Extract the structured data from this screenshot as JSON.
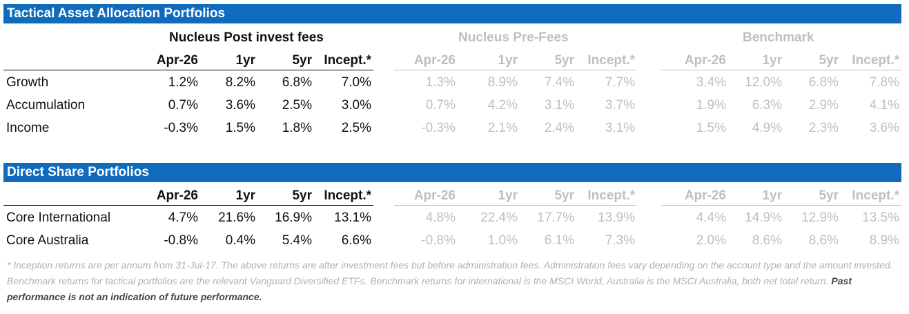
{
  "sections": [
    {
      "title": "Tactical Asset Allocation Portfolios",
      "group_headers": [
        "Nucleus Post invest fees",
        "Nucleus Pre-Fees",
        "Benchmark"
      ],
      "columns": [
        "Apr-26",
        "1yr",
        "5yr",
        "Incept.*"
      ],
      "rows": [
        {
          "name": "Growth",
          "post": [
            "1.2%",
            "8.2%",
            "6.8%",
            "7.0%"
          ],
          "pre": [
            "1.3%",
            "8.9%",
            "7.4%",
            "7.7%"
          ],
          "bench": [
            "3.4%",
            "12.0%",
            "6.8%",
            "7.8%"
          ]
        },
        {
          "name": "Accumulation",
          "post": [
            "0.7%",
            "3.6%",
            "2.5%",
            "3.0%"
          ],
          "pre": [
            "0.7%",
            "4.2%",
            "3.1%",
            "3.7%"
          ],
          "bench": [
            "1.9%",
            "6.3%",
            "2.9%",
            "4.1%"
          ]
        },
        {
          "name": "Income",
          "post": [
            "-0.3%",
            "1.5%",
            "1.8%",
            "2.5%"
          ],
          "pre": [
            "-0.3%",
            "2.1%",
            "2.4%",
            "3.1%"
          ],
          "bench": [
            "1.5%",
            "4.9%",
            "2.3%",
            "3.6%"
          ]
        }
      ]
    },
    {
      "title": "Direct Share Portfolios",
      "columns": [
        "Apr-26",
        "1yr",
        "5yr",
        "Incept.*"
      ],
      "rows": [
        {
          "name": "Core International",
          "post": [
            "4.7%",
            "21.6%",
            "16.9%",
            "13.1%"
          ],
          "pre": [
            "4.8%",
            "22.4%",
            "17.7%",
            "13.9%"
          ],
          "bench": [
            "4.4%",
            "14.9%",
            "12.9%",
            "13.5%"
          ]
        },
        {
          "name": "Core Australia",
          "post": [
            "-0.8%",
            "0.4%",
            "5.4%",
            "6.6%"
          ],
          "pre": [
            "-0.8%",
            "1.0%",
            "6.1%",
            "7.3%"
          ],
          "bench": [
            "2.0%",
            "8.6%",
            "8.6%",
            "8.9%"
          ]
        }
      ]
    }
  ],
  "footnote": {
    "text": "* Inception returns are per annum from 31-Jul-17. The above returns are after investment fees but before administration fees. Administration fees vary depending on the account type and the amount invested. Benchmark returns for tactical portfolios are the relevant Vanguard Diversified ETFs. Benchmark returns for international is the MSCI World, Australia is the MSCI Australia, both net total return.",
    "emphasis": "Past performance is not an indication of future performance."
  }
}
